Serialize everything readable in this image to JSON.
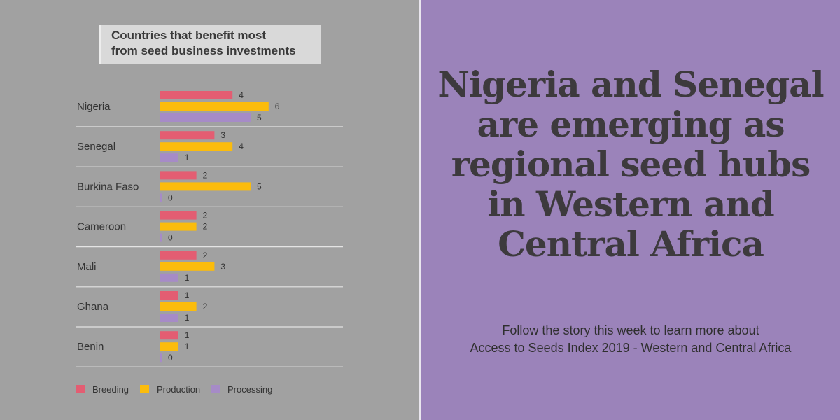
{
  "colors": {
    "left_background": "#a1a1a1",
    "right_background": "#9b83ba",
    "breeding": "#e35d72",
    "production": "#fbbc0c",
    "processing": "#a68bc7"
  },
  "chart_data": {
    "type": "bar",
    "orientation": "horizontal",
    "title": "Countries that benefit most\nfrom seed business investments",
    "categories": [
      "Nigeria",
      "Senegal",
      "Burkina Faso",
      "Cameroon",
      "Mali",
      "Ghana",
      "Benin"
    ],
    "series": [
      {
        "name": "Breeding",
        "values": [
          4,
          3,
          2,
          2,
          2,
          1,
          1
        ]
      },
      {
        "name": "Production",
        "values": [
          6,
          4,
          5,
          2,
          3,
          2,
          1
        ]
      },
      {
        "name": "Processing",
        "values": [
          5,
          1,
          0,
          0,
          1,
          1,
          0
        ]
      }
    ],
    "xlim": [
      0,
      6
    ],
    "grid": false,
    "legend_position": "bottom"
  },
  "headline": "Nigeria and Senegal\nare emerging as\nregional seed hubs\nin Western and\nCentral Africa",
  "subline": "Follow the story this week to learn more about\nAccess to Seeds Index 2019 - Western and Central Africa"
}
